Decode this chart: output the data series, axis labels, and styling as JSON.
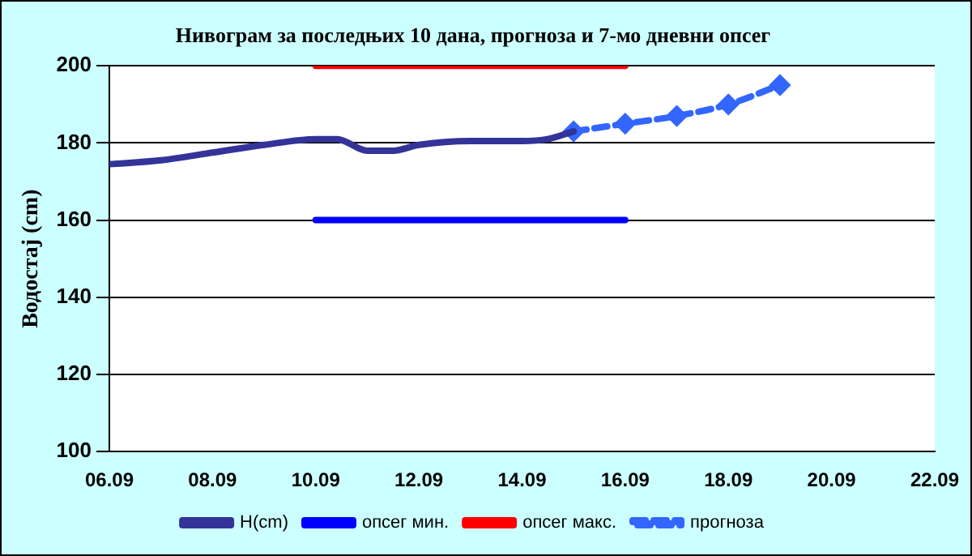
{
  "chart_data": {
    "type": "line",
    "title": "Нивограм за последњих 10 дана, прогноза и 7-мо дневни опсег",
    "ylabel": "Водостај (cm)",
    "xlim": [
      "--09-06",
      "--09-22"
    ],
    "xticks": [
      {
        "value": "--09-06",
        "label": "06.09"
      },
      {
        "value": "--09-08",
        "label": "08.09"
      },
      {
        "value": "--09-10",
        "label": "10.09"
      },
      {
        "value": "--09-12",
        "label": "12.09"
      },
      {
        "value": "--09-14",
        "label": "14.09"
      },
      {
        "value": "--09-16",
        "label": "16.09"
      },
      {
        "value": "--09-18",
        "label": "18.09"
      },
      {
        "value": "--09-20",
        "label": "20.09"
      },
      {
        "value": "--09-22",
        "label": "22.09"
      }
    ],
    "ylim": [
      100,
      200
    ],
    "yticks": [
      100,
      120,
      140,
      160,
      180,
      200
    ],
    "grid": "y",
    "legend": "bottom",
    "series": [
      {
        "name": "H(cm)",
        "color": "#333399",
        "x": [
          "--09-06",
          "--09-07",
          "--09-08",
          "--09-09",
          "--09-10",
          "--09-10T10:00",
          "--09-11",
          "--09-11T12:00",
          "--09-12",
          "--09-13",
          "--09-14",
          "--09-14T12:00",
          "--09-15"
        ],
        "values": [
          174.5,
          175.5,
          177.5,
          179.5,
          181,
          181,
          178,
          178,
          179.5,
          180.5,
          180.5,
          181,
          183
        ],
        "marker": "none",
        "line_style": "solid"
      },
      {
        "name": "опсег мин.",
        "color": "#0000ff",
        "x": [
          "--09-10",
          "--09-16"
        ],
        "values": [
          160,
          160
        ],
        "marker": "none",
        "line_style": "solid"
      },
      {
        "name": "опсег макс.",
        "color": "#ff0000",
        "x": [
          "--09-10",
          "--09-16"
        ],
        "values": [
          200,
          200
        ],
        "marker": "none",
        "line_style": "solid"
      },
      {
        "name": "прогноза",
        "color": "#3366ff",
        "x": [
          "--09-15",
          "--09-16",
          "--09-17",
          "--09-18",
          "--09-19"
        ],
        "values": [
          183,
          185,
          187,
          190,
          195
        ],
        "marker": "diamond",
        "line_style": "dashed"
      }
    ]
  }
}
